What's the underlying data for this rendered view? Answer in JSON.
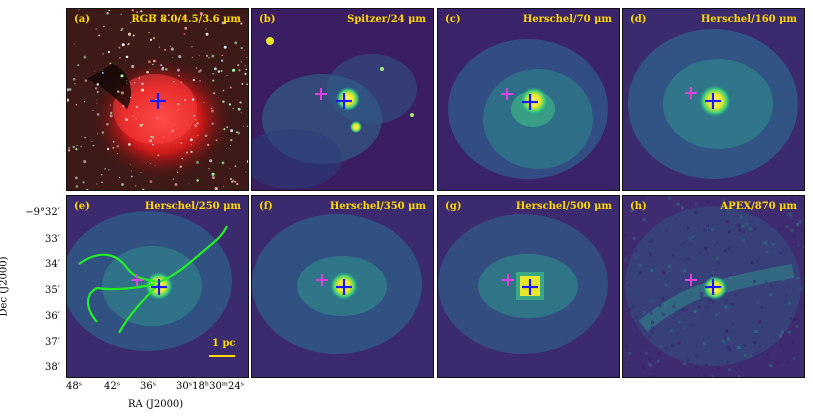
{
  "panels": [
    {
      "label": "(a)",
      "title": "RGB 8.0/4.5/3.6 μm",
      "style": "rgb"
    },
    {
      "label": "(b)",
      "title": "Spitzer/24 μm",
      "style": "mir"
    },
    {
      "label": "(c)",
      "title": "Herschel/70 μm",
      "style": "fir"
    },
    {
      "label": "(d)",
      "title": "Herschel/160 μm",
      "style": "fir2"
    },
    {
      "label": "(e)",
      "title": "Herschel/250 μm",
      "style": "smm"
    },
    {
      "label": "(f)",
      "title": "Herschel/350 μm",
      "style": "smm"
    },
    {
      "label": "(g)",
      "title": "Herschel/500 μm",
      "style": "smm"
    },
    {
      "label": "(h)",
      "title": "APEX/870 μm",
      "style": "apex"
    }
  ],
  "y_axis": {
    "label": "Dec (J2000)",
    "ticks": [
      "−9°32′",
      "33′",
      "34′",
      "35′",
      "36′",
      "37′",
      "38′"
    ]
  },
  "x_axis": {
    "label": "RA (J2000)",
    "ticks": [
      "48ˢ",
      "42ˢ",
      "36ˢ",
      "30ˢ18ʰ30ᵐ24ˢ"
    ]
  },
  "scale_bar": {
    "label": "1 pc"
  },
  "colors": {
    "marker_blue": "#1a1aff",
    "marker_magenta": "#e040e0",
    "filament_green": "#22ee22",
    "label_yellow": "#ffd800"
  }
}
